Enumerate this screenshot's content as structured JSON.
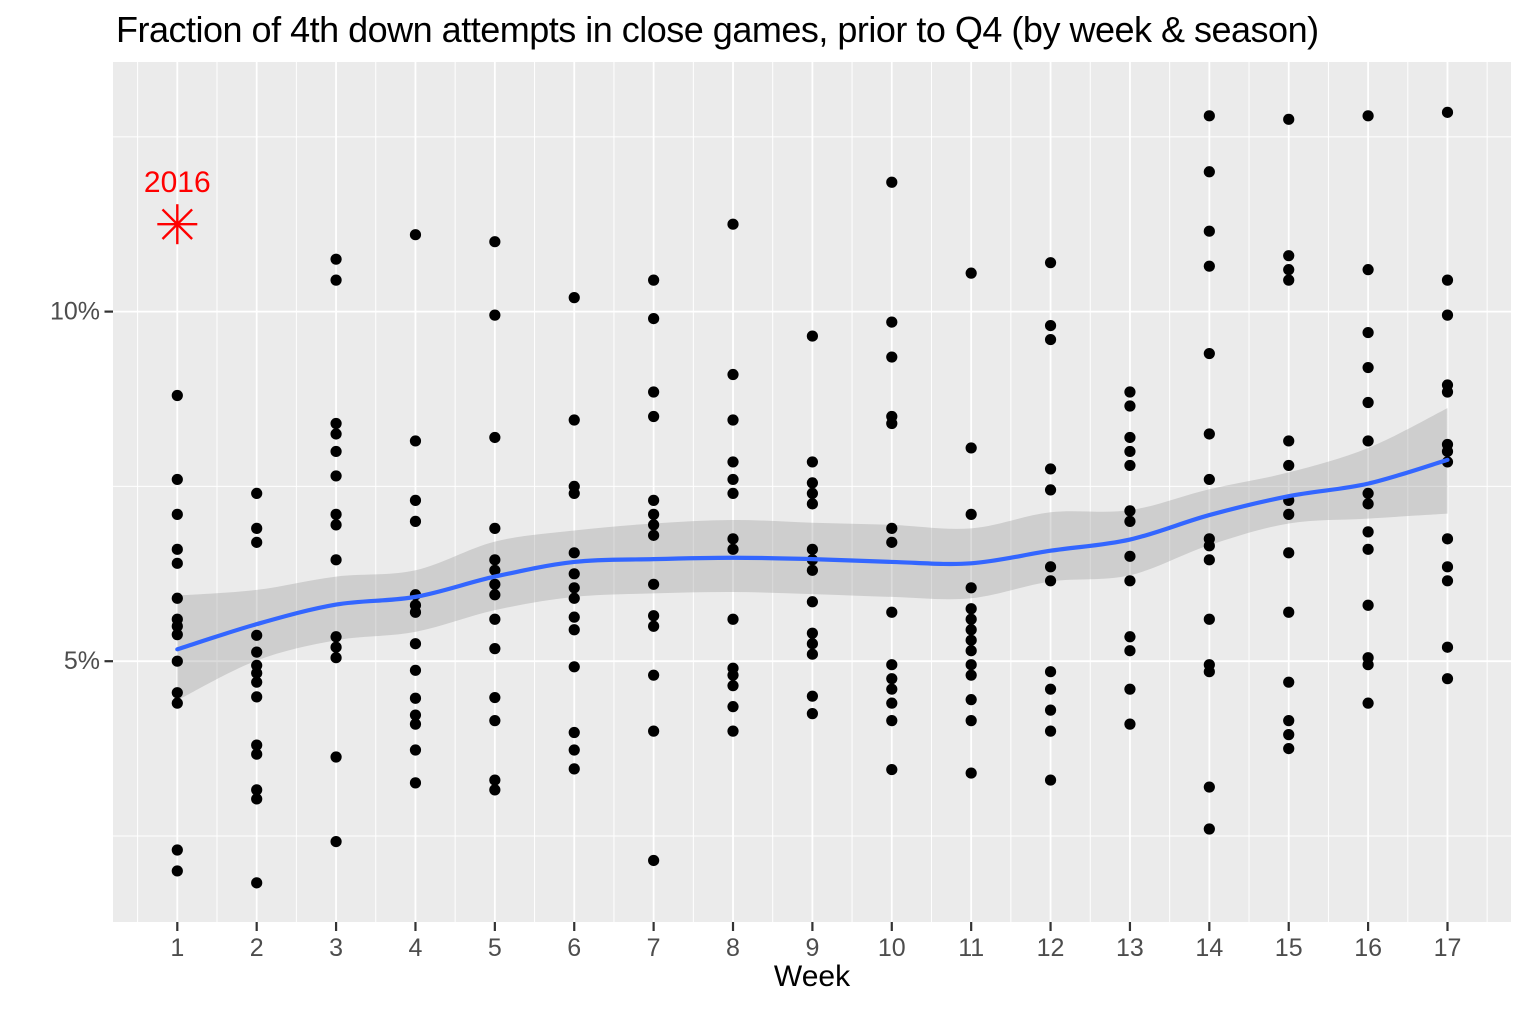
{
  "chart_data": {
    "type": "scatter",
    "title": "Fraction of 4th down attempts in close games, prior to Q4 (by week & season)",
    "xlabel": "Week",
    "ylabel": "",
    "x_ticks": [
      "1",
      "2",
      "3",
      "4",
      "5",
      "6",
      "7",
      "8",
      "9",
      "10",
      "11",
      "12",
      "13",
      "14",
      "15",
      "16",
      "17"
    ],
    "y_ticks": [
      {
        "value": 5,
        "label": "5%"
      },
      {
        "value": 10,
        "label": "10%"
      }
    ],
    "xlim": [
      0.19,
      17.8
    ],
    "ylim": [
      1.27,
      13.57
    ],
    "grid": {
      "major_y": [
        5,
        10
      ],
      "minor_y": [
        2.5,
        7.5,
        12.5
      ],
      "major_x_step": 1,
      "minor_x_offset": 0.5,
      "grid_on": true
    },
    "legend": "none",
    "annotation": {
      "label": "2016",
      "week": 1,
      "value": 11.25
    },
    "series": [
      {
        "week": 1,
        "values": [
          8.8,
          7.6,
          7.1,
          6.6,
          6.4,
          5.9,
          5.6,
          5.5,
          5.38,
          5.0,
          4.55,
          4.4,
          2.3,
          2.0
        ]
      },
      {
        "week": 2,
        "values": [
          7.4,
          6.9,
          6.7,
          5.37,
          5.13,
          4.94,
          4.83,
          4.7,
          4.49,
          3.8,
          3.67,
          3.16,
          3.03,
          1.83
        ]
      },
      {
        "week": 3,
        "values": [
          10.75,
          10.45,
          8.4,
          8.25,
          8.0,
          7.65,
          7.1,
          6.95,
          6.45,
          5.35,
          5.2,
          5.05,
          3.63,
          2.42
        ]
      },
      {
        "week": 4,
        "values": [
          11.1,
          8.15,
          7.3,
          7.0,
          5.95,
          5.8,
          5.7,
          5.25,
          4.87,
          4.47,
          4.23,
          4.1,
          3.73,
          3.26
        ]
      },
      {
        "week": 5,
        "values": [
          11.0,
          9.95,
          8.2,
          6.9,
          6.45,
          6.3,
          6.1,
          5.95,
          5.6,
          5.18,
          4.48,
          4.15,
          3.3,
          3.16
        ]
      },
      {
        "week": 6,
        "values": [
          10.2,
          8.45,
          7.5,
          7.4,
          6.55,
          6.25,
          6.05,
          5.9,
          5.63,
          5.45,
          4.92,
          3.98,
          3.73,
          3.46
        ]
      },
      {
        "week": 7,
        "values": [
          10.45,
          9.9,
          8.85,
          8.5,
          7.3,
          7.1,
          6.95,
          6.8,
          6.1,
          5.65,
          5.5,
          4.8,
          4.0,
          2.15
        ]
      },
      {
        "week": 8,
        "values": [
          11.25,
          9.1,
          8.45,
          7.85,
          7.6,
          7.4,
          6.75,
          6.6,
          5.6,
          4.9,
          4.8,
          4.65,
          4.35,
          4.0
        ]
      },
      {
        "week": 9,
        "values": [
          9.65,
          7.85,
          7.55,
          7.4,
          7.25,
          6.6,
          6.45,
          6.3,
          5.85,
          5.4,
          5.25,
          5.1,
          4.5,
          4.25
        ]
      },
      {
        "week": 10,
        "values": [
          11.85,
          9.85,
          9.35,
          8.5,
          8.4,
          6.9,
          6.7,
          5.7,
          4.95,
          4.75,
          4.6,
          4.4,
          4.15,
          3.45
        ]
      },
      {
        "week": 11,
        "values": [
          10.55,
          8.05,
          7.1,
          6.05,
          5.75,
          5.6,
          5.45,
          5.3,
          5.15,
          4.95,
          4.8,
          4.45,
          4.15,
          3.4
        ]
      },
      {
        "week": 12,
        "values": [
          10.7,
          9.8,
          9.6,
          7.75,
          7.45,
          6.35,
          6.15,
          4.85,
          4.6,
          4.3,
          4.0,
          3.3
        ]
      },
      {
        "week": 13,
        "values": [
          8.85,
          8.65,
          8.2,
          8.0,
          7.8,
          7.15,
          7.0,
          6.5,
          6.15,
          5.35,
          5.15,
          4.6,
          4.1
        ]
      },
      {
        "week": 14,
        "values": [
          12.8,
          12.0,
          11.15,
          10.65,
          9.4,
          8.25,
          7.6,
          6.75,
          6.65,
          6.45,
          5.6,
          4.95,
          4.85,
          3.2,
          2.6
        ]
      },
      {
        "week": 15,
        "values": [
          12.75,
          10.8,
          10.6,
          10.45,
          8.15,
          7.8,
          7.3,
          7.1,
          6.55,
          5.7,
          4.7,
          4.15,
          3.95,
          3.75
        ]
      },
      {
        "week": 16,
        "values": [
          12.8,
          10.6,
          9.7,
          9.2,
          8.7,
          8.15,
          7.4,
          7.25,
          6.85,
          6.6,
          5.8,
          5.05,
          4.95,
          4.4
        ]
      },
      {
        "week": 17,
        "values": [
          12.85,
          10.45,
          9.95,
          8.95,
          8.85,
          8.1,
          8.0,
          7.85,
          6.75,
          6.35,
          6.15,
          5.2,
          4.75
        ]
      }
    ],
    "smooth": {
      "x": [
        1,
        2,
        3,
        4,
        5,
        6,
        7,
        8,
        9,
        10,
        11,
        12,
        13,
        14,
        15,
        16,
        17
      ],
      "y": [
        5.17,
        5.53,
        5.81,
        5.92,
        6.21,
        6.42,
        6.46,
        6.48,
        6.46,
        6.42,
        6.4,
        6.58,
        6.74,
        7.09,
        7.36,
        7.54,
        7.88
      ]
    },
    "band": {
      "x": [
        1,
        2,
        3,
        4,
        5,
        6,
        7,
        8,
        9,
        10,
        11,
        12,
        13,
        14,
        15,
        16,
        17
      ],
      "upper": [
        5.94,
        6.02,
        6.21,
        6.3,
        6.71,
        6.87,
        6.97,
        7.02,
        6.98,
        6.95,
        6.9,
        7.13,
        7.16,
        7.46,
        7.7,
        8.05,
        8.62
      ],
      "lower": [
        4.44,
        5.01,
        5.3,
        5.42,
        5.73,
        5.92,
        5.97,
        5.99,
        5.96,
        5.92,
        5.9,
        6.14,
        6.23,
        6.66,
        6.97,
        7.04,
        7.11
      ]
    },
    "colors": {
      "panel": "#EBEBEB",
      "grid": "#FFFFFF",
      "point": "#000000",
      "smooth_line": "#3366FF",
      "band": "#999999",
      "annotation": "#FF0000",
      "axis_text": "#4D4D4D",
      "tick": "#333333",
      "title": "#000000"
    }
  }
}
